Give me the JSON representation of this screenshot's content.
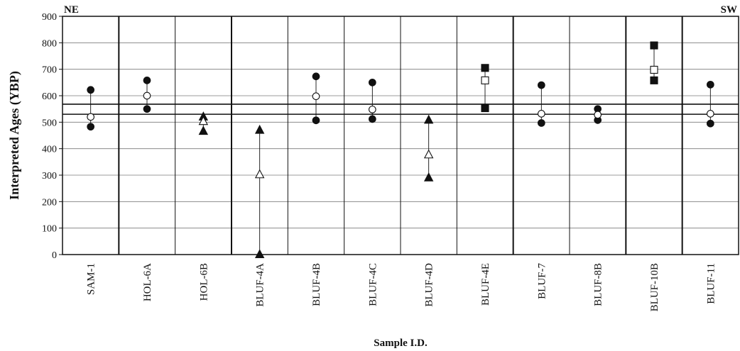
{
  "chart_data": {
    "type": "scatter",
    "title": "",
    "xlabel": "Sample I.D.",
    "ylabel": "Interpreted Ages (YBP)",
    "ylim": [
      0,
      900
    ],
    "yticks": [
      0,
      100,
      200,
      300,
      400,
      500,
      600,
      700,
      800,
      900
    ],
    "grid": true,
    "direction_labels": {
      "left": "NE",
      "right": "SW"
    },
    "reference_lines": [
      530,
      568
    ],
    "categories": [
      "SAM-1",
      "HOL-6A",
      "HOL-6B",
      "BLUF-4A",
      "BLUF-4B",
      "BLUF-4C",
      "BLUF-4D",
      "BLUF-4E",
      "BLUF-7",
      "BLUF-8B",
      "BLUF-10B",
      "BLUF-11"
    ],
    "samples": [
      {
        "id": "SAM-1",
        "marker": "circle",
        "low": 483,
        "mid": 520,
        "high": 622
      },
      {
        "id": "HOL-6A",
        "marker": "circle",
        "low": 550,
        "mid": 600,
        "high": 658
      },
      {
        "id": "HOL-6B",
        "marker": "triangle",
        "low": 466,
        "mid": 503,
        "high": 520
      },
      {
        "id": "BLUF-4A",
        "marker": "triangle",
        "low": 0,
        "mid": 302,
        "high": 470
      },
      {
        "id": "BLUF-4B",
        "marker": "circle",
        "low": 507,
        "mid": 598,
        "high": 673
      },
      {
        "id": "BLUF-4C",
        "marker": "circle",
        "low": 512,
        "mid": 548,
        "high": 650
      },
      {
        "id": "BLUF-4D",
        "marker": "triangle",
        "low": 290,
        "mid": 377,
        "high": 508
      },
      {
        "id": "BLUF-4E",
        "marker": "square",
        "low": 553,
        "mid": 658,
        "high": 705
      },
      {
        "id": "BLUF-7",
        "marker": "circle",
        "low": 497,
        "mid": 532,
        "high": 640
      },
      {
        "id": "BLUF-8B",
        "marker": "circle",
        "low": 508,
        "mid": 528,
        "high": 550
      },
      {
        "id": "BLUF-10B",
        "marker": "square",
        "low": 658,
        "mid": 698,
        "high": 790
      },
      {
        "id": "BLUF-11",
        "marker": "circle",
        "low": 495,
        "mid": 532,
        "high": 642
      }
    ],
    "group_boundaries_after": [
      "SAM-1",
      "HOL-6B",
      "BLUF-4E",
      "BLUF-8B",
      "BLUF-10B"
    ],
    "colors": {
      "ink": "#111111",
      "grid": "#7a7a7a",
      "background": "#ffffff"
    }
  }
}
